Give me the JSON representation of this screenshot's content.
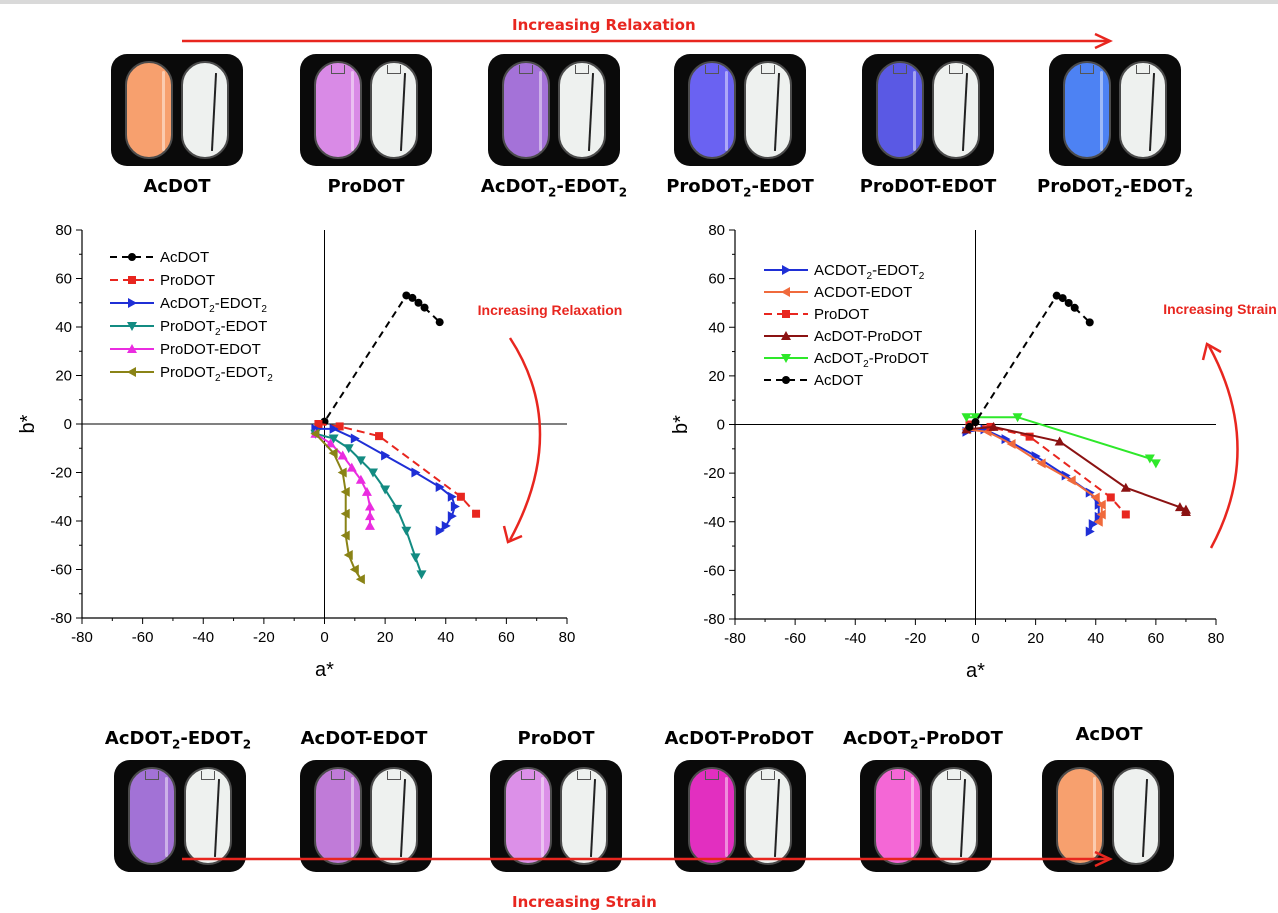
{
  "top_banner": "Increasing Relaxation",
  "bottom_banner": "Increasing Strain",
  "colors": {
    "arrow": "#e8261f"
  },
  "top_samples": [
    {
      "name": "AcDOT",
      "sub": "",
      "rest": "",
      "sub2": "",
      "color": "#f7a06e"
    },
    {
      "name": "ProDOT",
      "sub": "",
      "rest": "",
      "sub2": "",
      "color": "#d98ae6"
    },
    {
      "name": "AcDOT",
      "sub": "2",
      "rest": "-EDOT",
      "sub2": "2",
      "color": "#a472d8"
    },
    {
      "name": "ProDOT",
      "sub": "2",
      "rest": "-EDOT",
      "sub2": "",
      "color": "#6a62f2"
    },
    {
      "name": "ProDOT-EDOT",
      "sub": "",
      "rest": "",
      "sub2": "",
      "color": "#5a59e4"
    },
    {
      "name": "ProDOT",
      "sub": "2",
      "rest": "-EDOT",
      "sub2": "2",
      "color": "#4d82f3"
    }
  ],
  "bottom_samples": [
    {
      "name": "AcDOT",
      "sub": "2",
      "rest": "-EDOT",
      "sub2": "2",
      "color": "#a272d6"
    },
    {
      "name": "AcDOT-EDOT",
      "sub": "",
      "rest": "",
      "sub2": "",
      "color": "#c07bd8"
    },
    {
      "name": "ProDOT",
      "sub": "",
      "rest": "",
      "sub2": "",
      "color": "#dc90e8"
    },
    {
      "name": "AcDOT-ProDOT",
      "sub": "",
      "rest": "",
      "sub2": "",
      "color": "#e22fc0"
    },
    {
      "name": "AcDOT",
      "sub": "2",
      "rest": "-ProDOT",
      "sub2": "",
      "color": "#f467d6"
    },
    {
      "name": "AcDOT",
      "sub": "",
      "rest": "",
      "sub2": "",
      "color": "#f7a06e"
    }
  ],
  "chart_data": [
    {
      "type": "line",
      "xlabel": "a*",
      "ylabel": "b*",
      "xlim": [
        -80,
        80
      ],
      "ylim": [
        -80,
        80
      ],
      "xticks": [
        -80,
        -60,
        -40,
        -20,
        0,
        20,
        40,
        60,
        80
      ],
      "yticks": [
        -80,
        -60,
        -40,
        -20,
        0,
        20,
        40,
        60,
        80
      ],
      "annotation": "Increasing Relaxation",
      "legend_position": "top-left",
      "series": [
        {
          "name": "AcDOT",
          "sub": "",
          "rest": "",
          "sub2": "",
          "color": "#000000",
          "marker": "circle",
          "dash": "7,5",
          "x": [
            -2,
            0,
            27,
            29,
            31,
            33,
            38
          ],
          "y": [
            -1,
            1,
            53,
            52,
            50,
            48,
            42
          ]
        },
        {
          "name": "ProDOT",
          "sub": "",
          "rest": "",
          "sub2": "",
          "color": "#e8261f",
          "marker": "square",
          "dash": "8,5",
          "x": [
            -2,
            5,
            18,
            45,
            50
          ],
          "y": [
            0,
            -1,
            -5,
            -30,
            -37
          ]
        },
        {
          "name": "AcDOT",
          "sub": "2",
          "rest": "-EDOT",
          "sub2": "2",
          "color": "#1f2fd6",
          "marker": "tri-right",
          "dash": "",
          "x": [
            -3,
            3,
            10,
            20,
            30,
            38,
            42,
            43,
            42,
            40,
            38
          ],
          "y": [
            -2,
            -2,
            -6,
            -13,
            -20,
            -26,
            -30,
            -34,
            -38,
            -42,
            -44
          ]
        },
        {
          "name": "ProDOT",
          "sub": "2",
          "rest": "-EDOT",
          "sub2": "",
          "color": "#138b82",
          "marker": "tri-down",
          "dash": "",
          "x": [
            -3,
            3,
            8,
            12,
            16,
            20,
            24,
            27,
            30,
            32
          ],
          "y": [
            -4,
            -6,
            -10,
            -15,
            -20,
            -27,
            -35,
            -44,
            -55,
            -62
          ]
        },
        {
          "name": "ProDOT-EDOT",
          "sub": "",
          "rest": "",
          "sub2": "",
          "color": "#ea2ce0",
          "marker": "tri-up",
          "dash": "",
          "x": [
            -3,
            2,
            6,
            9,
            12,
            14,
            15,
            15,
            15
          ],
          "y": [
            -4,
            -8,
            -13,
            -18,
            -23,
            -28,
            -34,
            -38,
            -42
          ]
        },
        {
          "name": "ProDOT",
          "sub": "2",
          "rest": "-EDOT",
          "sub2": "2",
          "color": "#8a8316",
          "marker": "tri-left",
          "dash": "",
          "x": [
            -3,
            3,
            6,
            7,
            7,
            7,
            8,
            10,
            12
          ],
          "y": [
            -4,
            -12,
            -20,
            -28,
            -37,
            -46,
            -54,
            -60,
            -64
          ]
        }
      ]
    },
    {
      "type": "line",
      "xlabel": "a*",
      "ylabel": "b*",
      "xlim": [
        -80,
        80
      ],
      "ylim": [
        -80,
        80
      ],
      "xticks": [
        -80,
        -60,
        -40,
        -20,
        0,
        20,
        40,
        60,
        80
      ],
      "yticks": [
        -80,
        -60,
        -40,
        -20,
        0,
        20,
        40,
        60,
        80
      ],
      "annotation": "Increasing Strain",
      "legend_position": "top-left",
      "series": [
        {
          "name": "ACDOT",
          "sub": "2",
          "rest": "-EDOT",
          "sub2": "2",
          "color": "#1f2fd6",
          "marker": "tri-right",
          "dash": "",
          "x": [
            -3,
            3,
            10,
            20,
            30,
            38,
            41,
            41,
            39,
            38
          ],
          "y": [
            -3,
            -2,
            -6,
            -13,
            -21,
            -28,
            -33,
            -38,
            -41,
            -44
          ]
        },
        {
          "name": "ACDOT-EDOT",
          "sub": "",
          "rest": "",
          "sub2": "",
          "color": "#f06a3c",
          "marker": "tri-left",
          "dash": "",
          "x": [
            -3,
            4,
            12,
            22,
            32,
            40,
            42,
            42,
            41
          ],
          "y": [
            -2,
            -3,
            -8,
            -16,
            -23,
            -30,
            -33,
            -37,
            -40
          ]
        },
        {
          "name": "ProDOT",
          "sub": "",
          "rest": "",
          "sub2": "",
          "color": "#e8261f",
          "marker": "square",
          "dash": "8,5",
          "x": [
            -2,
            5,
            18,
            45,
            50
          ],
          "y": [
            0,
            -1,
            -5,
            -30,
            -37
          ]
        },
        {
          "name": "AcDOT-ProDOT",
          "sub": "",
          "rest": "",
          "sub2": "",
          "color": "#8b1212",
          "marker": "tri-up",
          "dash": "",
          "x": [
            -3,
            6,
            28,
            50,
            68,
            70,
            70
          ],
          "y": [
            -2,
            -1,
            -7,
            -26,
            -34,
            -35,
            -36
          ]
        },
        {
          "name": "AcDOT",
          "sub": "2",
          "rest": "-ProDOT",
          "sub2": "",
          "color": "#2ee82a",
          "marker": "tri-down",
          "dash": "",
          "x": [
            -3,
            0,
            14,
            58,
            60
          ],
          "y": [
            3,
            3,
            3,
            -14,
            -16
          ]
        },
        {
          "name": "AcDOT",
          "sub": "",
          "rest": "",
          "sub2": "",
          "color": "#000000",
          "marker": "circle",
          "dash": "7,5",
          "x": [
            -2,
            0,
            27,
            29,
            31,
            33,
            38
          ],
          "y": [
            -1,
            1,
            53,
            52,
            50,
            48,
            42
          ]
        }
      ]
    }
  ]
}
